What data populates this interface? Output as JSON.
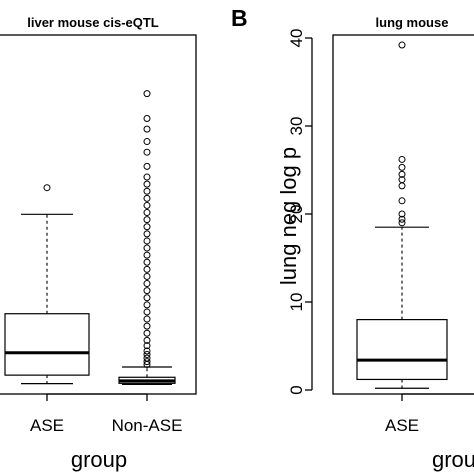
{
  "panel_letter": "B",
  "chart_data": [
    {
      "type": "boxplot",
      "title": "liver mouse cis-eQTL",
      "xlabel": "group",
      "ylabel": "",
      "categories": [
        "ASE",
        "Non-ASE"
      ],
      "boxes": [
        {
          "category": "ASE",
          "whisker_low": 0.8,
          "q1": 3.2,
          "median": 9.5,
          "q3": 20.5,
          "whisker_high": 48.5,
          "outliers": [
            56
          ]
        },
        {
          "category": "Non-ASE",
          "whisker_low": 0.6,
          "q1": 0.9,
          "median": 1.6,
          "q3": 2.6,
          "whisker_high": 5.5,
          "outliers": [
            6.2,
            7.0,
            8.0,
            9.0,
            10.0,
            11.5,
            13.0,
            15.0,
            17.0,
            19.0,
            21.0,
            23.0,
            25.0,
            27.0,
            29.0,
            31.0,
            33.0,
            35.0,
            37.0,
            39.0,
            41.0,
            43.0,
            45.0,
            47.0,
            49.0,
            51.0,
            53.0,
            55.0,
            57.0,
            59.0,
            62.0,
            66.0,
            69.0,
            72.5,
            75.5,
            82.5
          ]
        }
      ]
    },
    {
      "type": "boxplot",
      "title": "lung mouse",
      "xlabel": "grou",
      "ylabel": "lung neg log p",
      "ylim": [
        0,
        40
      ],
      "yticks": [
        "0",
        "10",
        "20",
        "30",
        "40"
      ],
      "categories": [
        "ASE"
      ],
      "boxes": [
        {
          "category": "ASE",
          "whisker_low": 0.2,
          "q1": 1.2,
          "median": 3.4,
          "q3": 8.0,
          "whisker_high": 18.5,
          "outliers": [
            19.0,
            19.4,
            20.0,
            21.5,
            23.2,
            23.9,
            24.5,
            25.3,
            26.2,
            39.2
          ]
        }
      ]
    }
  ]
}
